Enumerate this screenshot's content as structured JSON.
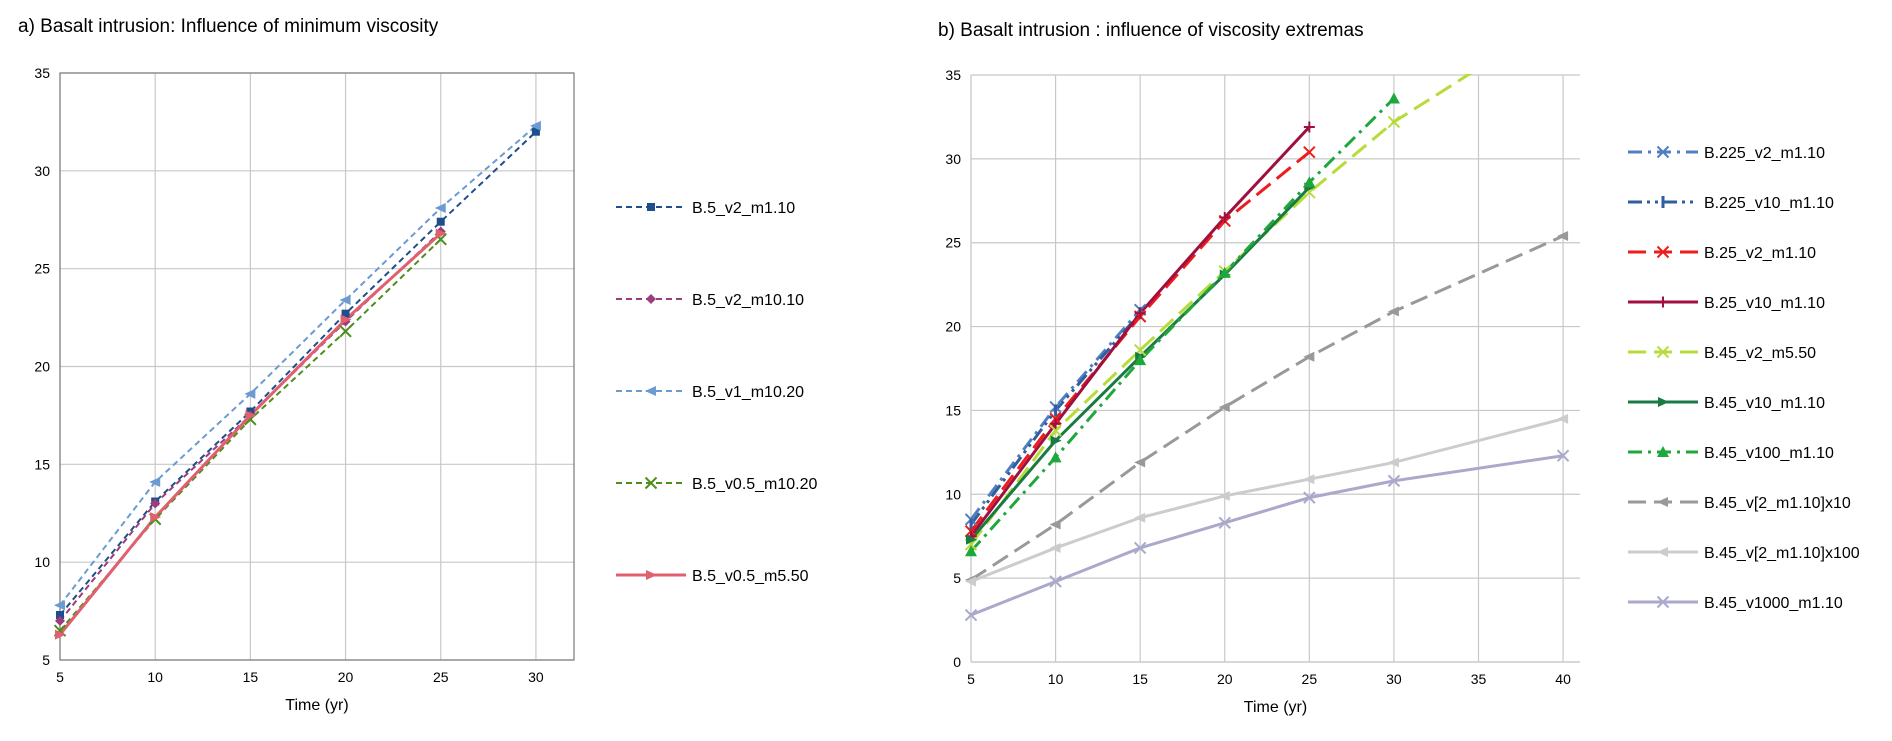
{
  "chart_data": [
    {
      "type": "line",
      "title": "a) Basalt intrusion: Influence of minimum viscosity",
      "xlabel": "Time (yr)",
      "ylabel": "",
      "xlim": [
        5,
        32
      ],
      "ylim": [
        5,
        35
      ],
      "xticks": [
        5,
        10,
        15,
        20,
        25,
        30
      ],
      "yticks": [
        5,
        10,
        15,
        20,
        25,
        30,
        35
      ],
      "grid": true,
      "legend_position": "right",
      "series": [
        {
          "name": "B.5_v2_m1.10",
          "color": "#1f4e8c",
          "dash": "short-dash",
          "marker": "square",
          "x": [
            5,
            10,
            15,
            20,
            25,
            30
          ],
          "y": [
            7.3,
            13.1,
            17.7,
            22.7,
            27.4,
            32.0
          ]
        },
        {
          "name": "B.5_v2_m10.10",
          "color": "#9c3c7a",
          "dash": "short-dash",
          "marker": "diamond",
          "x": [
            5,
            10,
            15,
            20,
            25
          ],
          "y": [
            7.0,
            13.0,
            17.5,
            22.3,
            26.9
          ]
        },
        {
          "name": "B.5_v1_m10.20",
          "color": "#6b9bd2",
          "dash": "short-dash",
          "marker": "triangle-left",
          "x": [
            5,
            10,
            15,
            20,
            25,
            30
          ],
          "y": [
            7.8,
            14.1,
            18.6,
            23.4,
            28.1,
            32.3
          ]
        },
        {
          "name": "B.5_v0.5_m10.20",
          "color": "#4d8f1c",
          "dash": "short-dash",
          "marker": "x",
          "x": [
            5,
            10,
            15,
            20,
            25
          ],
          "y": [
            6.5,
            12.2,
            17.3,
            21.8,
            26.5
          ]
        },
        {
          "name": "B.5_v0.5_m5.50",
          "color": "#e06070",
          "dash": "solid",
          "marker": "triangle-right",
          "x": [
            5,
            10,
            15,
            20,
            25
          ],
          "y": [
            6.3,
            12.3,
            17.5,
            22.4,
            26.8
          ]
        }
      ]
    },
    {
      "type": "line",
      "title": "b) Basalt intrusion : influence of viscosity extremas",
      "xlabel": "Time (yr)",
      "ylabel": "",
      "xlim": [
        5,
        41
      ],
      "ylim": [
        0,
        35
      ],
      "xticks": [
        5,
        10,
        15,
        20,
        25,
        30,
        35,
        40
      ],
      "yticks": [
        0,
        5,
        10,
        15,
        20,
        25,
        30,
        35
      ],
      "grid": true,
      "legend_position": "right",
      "series": [
        {
          "name": "B.225_v2_m1.10",
          "color": "#4f7fc0",
          "dash": "dash-dot",
          "marker": "x",
          "x": [
            5,
            10,
            15
          ],
          "y": [
            8.5,
            15.2,
            21.0
          ]
        },
        {
          "name": "B.225_v10_m1.10",
          "color": "#2f5f9f",
          "dash": "dash-dot-dot",
          "marker": "bar",
          "x": [
            5,
            10,
            15
          ],
          "y": [
            8.2,
            15.0,
            20.8
          ]
        },
        {
          "name": "B.25_v2_m1.10",
          "color": "#ee1c1c",
          "dash": "long-dash",
          "marker": "x",
          "x": [
            5,
            10,
            15,
            20,
            25
          ],
          "y": [
            7.8,
            14.5,
            20.6,
            26.3,
            30.4
          ]
        },
        {
          "name": "B.25_v10_m1.10",
          "color": "#a0103f",
          "dash": "solid",
          "marker": "plus",
          "x": [
            5,
            10,
            15,
            20,
            25
          ],
          "y": [
            7.5,
            14.2,
            20.8,
            26.5,
            31.9
          ]
        },
        {
          "name": "B.45_v2_m5.50",
          "color": "#b7dc3a",
          "dash": "long-dash",
          "marker": "x",
          "x": [
            5,
            10,
            15,
            20,
            25,
            30,
            35
          ],
          "y": [
            7.0,
            13.8,
            18.6,
            23.3,
            28.0,
            32.2,
            35.4
          ]
        },
        {
          "name": "B.45_v10_m1.10",
          "color": "#1a7a44",
          "dash": "solid",
          "marker": "triangle-right",
          "x": [
            5,
            10,
            15,
            20,
            25
          ],
          "y": [
            7.3,
            13.2,
            18.2,
            23.1,
            28.3
          ]
        },
        {
          "name": "B.45_v100_m1.10",
          "color": "#1ea83c",
          "dash": "dash-dot",
          "marker": "triangle-up",
          "x": [
            5,
            10,
            15,
            20,
            25,
            30
          ],
          "y": [
            6.6,
            12.2,
            18.0,
            23.2,
            28.6,
            33.6
          ]
        },
        {
          "name": "B.45_v[2_m1.10]x10",
          "color": "#999999",
          "dash": "long-dash",
          "marker": "triangle-left",
          "x": [
            5,
            10,
            15,
            20,
            25,
            30,
            40
          ],
          "y": [
            4.9,
            8.2,
            11.9,
            15.2,
            18.2,
            20.9,
            25.4
          ]
        },
        {
          "name": "B.45_v[2_m1.10]x100",
          "color": "#cccccc",
          "dash": "solid",
          "marker": "triangle-left",
          "x": [
            5,
            10,
            15,
            20,
            25,
            30,
            40
          ],
          "y": [
            4.8,
            6.8,
            8.6,
            9.9,
            10.9,
            11.9,
            14.5
          ]
        },
        {
          "name": "B.45_v1000_m1.10",
          "color": "#aaa9cc",
          "dash": "solid",
          "marker": "x",
          "x": [
            5,
            10,
            15,
            20,
            25,
            30,
            40
          ],
          "y": [
            2.8,
            4.8,
            6.8,
            8.3,
            9.8,
            10.8,
            12.3
          ]
        }
      ]
    }
  ]
}
